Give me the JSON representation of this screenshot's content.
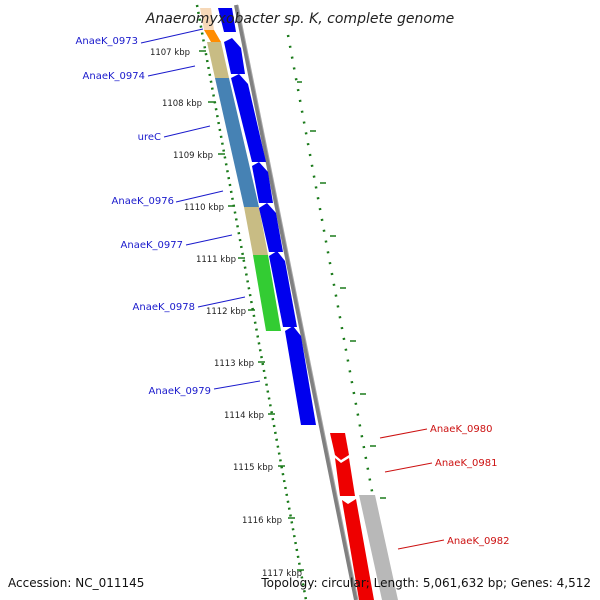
{
  "header": {
    "title": "Anaeromyxobacter sp. K, complete genome"
  },
  "footer": {
    "accession": "Accession: NC_011145",
    "summary": "Topology: circular; Length: 5,061,632 bp; Genes: 4,512"
  },
  "ruler_ticks": [
    "1107 kbp",
    "1108 kbp",
    "1109 kbp",
    "1110 kbp",
    "1111 kbp",
    "1112 kbp",
    "1113 kbp",
    "1114 kbp",
    "1115 kbp",
    "1116 kbp",
    "1117 kbp"
  ],
  "gene_labels_left": [
    "AnaeK_0973",
    "AnaeK_0974",
    "ureC",
    "AnaeK_0976",
    "AnaeK_0977",
    "AnaeK_0978",
    "AnaeK_0979"
  ],
  "gene_labels_right": [
    "AnaeK_0980",
    "AnaeK_0981",
    "AnaeK_0982"
  ],
  "colors": {
    "forward_gene": "#0000ee",
    "reverse_gene": "#ee0000",
    "backbone": "#808080",
    "gc_dots": "#1a7a1a",
    "cog_tan": "#c8bc84",
    "cog_steelblue": "#4682b4",
    "cog_green": "#33cc33",
    "cog_orange": "#ff8c00",
    "cog_grey": "#b8b8b8"
  }
}
